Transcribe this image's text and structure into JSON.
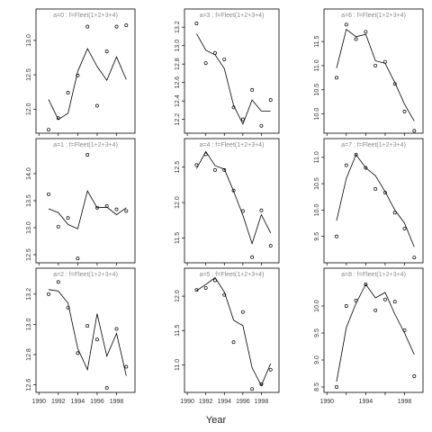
{
  "chart_data": {
    "type": "line",
    "xlabel": "Year",
    "colors": {
      "line": "#000000",
      "point": "#000000",
      "strip_text": "#8a8a8a",
      "frame": "#000000"
    },
    "panels": [
      {
        "label": "a=0 : f=Fleet(1+2+3+4)",
        "ylim": [
          11.65,
          13.3
        ],
        "yticks": [
          12.0,
          12.5,
          13.0
        ],
        "ytick_labels": [
          "12.0",
          "12.5",
          "13.0"
        ],
        "x_line": [
          1991,
          1992,
          1993,
          1994,
          1995,
          1996,
          1997,
          1998,
          1999
        ],
        "y_line": [
          12.14,
          11.85,
          11.94,
          12.55,
          12.88,
          12.62,
          12.42,
          12.76,
          12.43
        ],
        "x_points": [
          1991,
          1992,
          1993,
          1994,
          1995,
          1996,
          1997,
          1998,
          1999
        ],
        "y_points": [
          11.7,
          11.87,
          12.24,
          12.49,
          13.2,
          12.05,
          12.84,
          13.2,
          13.22
        ]
      },
      {
        "label": "a=3 : f=Fleet(1+2+3+4)",
        "ylim": [
          12.05,
          13.28
        ],
        "yticks": [
          12.2,
          12.4,
          12.6,
          12.8,
          13.0,
          13.2
        ],
        "ytick_labels": [
          "12.2",
          "12.4",
          "12.6",
          "12.8",
          "13.0",
          "13.2"
        ],
        "x_line": [
          1991,
          1992,
          1993,
          1994,
          1995,
          1996,
          1997,
          1998,
          1999
        ],
        "y_line": [
          13.13,
          12.95,
          12.9,
          12.75,
          12.35,
          12.15,
          12.41,
          12.29,
          12.29
        ],
        "x_points": [
          1991,
          1992,
          1993,
          1994,
          1995,
          1996,
          1997,
          1998,
          1999
        ],
        "y_points": [
          13.24,
          12.81,
          12.92,
          12.85,
          12.33,
          12.2,
          12.52,
          12.13,
          12.41
        ]
      },
      {
        "label": "a=6 : f=Fleet(1+2+3+4)",
        "ylim": [
          9.6,
          11.95
        ],
        "yticks": [
          10.0,
          10.5,
          11.0,
          11.5
        ],
        "ytick_labels": [
          "10.0",
          "10.5",
          "11.0",
          "11.5"
        ],
        "x_line": [
          1991,
          1992,
          1993,
          1994,
          1995,
          1996,
          1997,
          1998,
          1999
        ],
        "y_line": [
          10.95,
          11.75,
          11.6,
          11.65,
          11.1,
          11.05,
          10.65,
          10.2,
          9.85
        ],
        "x_points": [
          1991,
          1992,
          1993,
          1994,
          1995,
          1996,
          1997,
          1998,
          1999
        ],
        "y_points": [
          10.75,
          11.85,
          11.55,
          11.7,
          11.0,
          11.08,
          10.62,
          10.05,
          9.65
        ]
      },
      {
        "label": "a=1 : f=Fleet(1+2+3+4)",
        "ylim": [
          12.35,
          14.45
        ],
        "yticks": [
          12.5,
          13.0,
          13.5,
          14.0
        ],
        "ytick_labels": [
          "12.5",
          "13.0",
          "13.5",
          "14.0"
        ],
        "x_line": [
          1991,
          1992,
          1993,
          1994,
          1995,
          1996,
          1997,
          1998,
          1999
        ],
        "y_line": [
          13.35,
          13.28,
          13.06,
          12.98,
          13.68,
          13.37,
          13.38,
          13.24,
          13.37
        ],
        "x_points": [
          1991,
          1992,
          1993,
          1994,
          1995,
          1996,
          1997,
          1998,
          1999
        ],
        "y_points": [
          13.62,
          13.02,
          13.18,
          12.43,
          14.35,
          13.37,
          13.4,
          13.34,
          13.31
        ]
      },
      {
        "label": "a=4 : f=Fleet(1+2+3+4)",
        "ylim": [
          11.15,
          12.75
        ],
        "yticks": [
          11.5,
          12.0,
          12.5
        ],
        "ytick_labels": [
          "11.5",
          "12.0",
          "12.5"
        ],
        "x_line": [
          1991,
          1992,
          1993,
          1994,
          1995,
          1996,
          1997,
          1998,
          1999
        ],
        "y_line": [
          12.48,
          12.72,
          12.52,
          12.47,
          12.16,
          11.82,
          11.42,
          11.83,
          11.57
        ],
        "x_points": [
          1991,
          1992,
          1993,
          1994,
          1995,
          1996,
          1997,
          1998,
          1999
        ],
        "y_points": [
          12.53,
          12.68,
          12.46,
          12.46,
          12.17,
          11.88,
          11.23,
          11.89,
          11.39
        ]
      },
      {
        "label": "a=7 : f=Fleet(1+2+3+4)",
        "ylim": [
          9.0,
          11.15
        ],
        "yticks": [
          9.5,
          10.0,
          10.5,
          11.0
        ],
        "ytick_labels": [
          "9.5",
          "10.0",
          "10.5",
          "11.0"
        ],
        "x_line": [
          1991,
          1992,
          1993,
          1994,
          1995,
          1996,
          1997,
          1998,
          1999
        ],
        "y_line": [
          9.8,
          10.6,
          11.05,
          10.8,
          10.65,
          10.35,
          10.0,
          9.75,
          9.3
        ],
        "x_points": [
          1991,
          1992,
          1993,
          1994,
          1995,
          1996,
          1997,
          1998,
          1999
        ],
        "y_points": [
          9.5,
          10.85,
          11.05,
          10.8,
          10.4,
          10.33,
          9.95,
          9.65,
          9.1
        ]
      },
      {
        "label": "a=2 : f=Fleet(1+2+3+4)",
        "ylim": [
          12.55,
          13.3
        ],
        "yticks": [
          12.6,
          12.8,
          13.0,
          13.2
        ],
        "ytick_labels": [
          "12.6",
          "12.8",
          "13.0",
          "13.2"
        ],
        "x_line": [
          1991,
          1992,
          1993,
          1994,
          1995,
          1996,
          1997,
          1998,
          1999
        ],
        "y_line": [
          13.23,
          13.22,
          13.14,
          12.84,
          12.7,
          13.07,
          12.79,
          12.94,
          12.66
        ],
        "x_points": [
          1991,
          1992,
          1993,
          1994,
          1995,
          1996,
          1997,
          1998,
          1999
        ],
        "y_points": [
          13.2,
          13.28,
          13.11,
          12.81,
          12.99,
          12.9,
          12.58,
          12.97,
          12.72
        ]
      },
      {
        "label": "a=5 : f=Fleet(1+2+3+4)",
        "ylim": [
          10.6,
          12.25
        ],
        "yticks": [
          11.0,
          11.5,
          12.0
        ],
        "ytick_labels": [
          "11.0",
          "11.5",
          "12.0"
        ],
        "x_line": [
          1991,
          1992,
          1993,
          1994,
          1995,
          1996,
          1997,
          1998,
          1999
        ],
        "y_line": [
          12.08,
          12.17,
          12.27,
          12.06,
          11.65,
          11.57,
          10.96,
          10.7,
          11.02
        ],
        "x_points": [
          1991,
          1992,
          1993,
          1994,
          1995,
          1996,
          1997,
          1998,
          1999
        ],
        "y_points": [
          12.09,
          12.12,
          12.23,
          12.02,
          11.33,
          11.77,
          10.65,
          10.72,
          10.93
        ]
      },
      {
        "label": "a=8 : f=Fleet(1+2+3+4)",
        "ylim": [
          8.4,
          10.5
        ],
        "yticks": [
          8.5,
          9.0,
          9.5,
          10.0
        ],
        "ytick_labels": [
          "8.5",
          "9.0",
          "9.5",
          "10.0"
        ],
        "x_line": [
          1991,
          1992,
          1993,
          1994,
          1995,
          1996,
          1997,
          1998,
          1999
        ],
        "y_line": [
          8.6,
          9.6,
          10.05,
          10.4,
          10.15,
          10.25,
          9.85,
          9.5,
          9.1
        ],
        "x_points": [
          1991,
          1992,
          1993,
          1994,
          1995,
          1996,
          1997,
          1998,
          1999
        ],
        "y_points": [
          8.5,
          10.0,
          10.1,
          10.4,
          9.92,
          10.12,
          10.08,
          9.55,
          8.7
        ]
      }
    ],
    "xlim": [
      1989.7,
      1999.9
    ],
    "xticks": [
      1990,
      1992,
      1994,
      1996,
      1998
    ],
    "xtick_labels_by_column": [
      [
        "1990",
        "1992",
        "1994",
        "1996",
        "1998"
      ],
      [
        "1990",
        "1992",
        "1994",
        "1996",
        "1998"
      ],
      [
        "1990",
        "",
        "1994",
        "",
        "1998"
      ]
    ]
  }
}
